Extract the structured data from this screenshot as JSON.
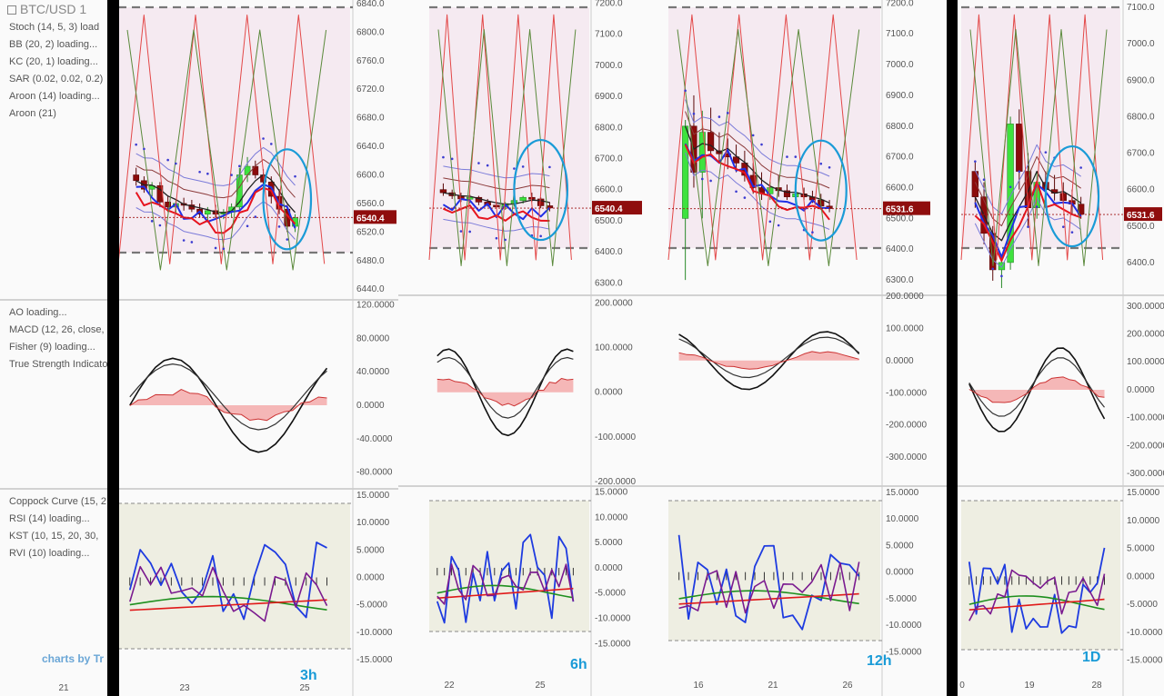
{
  "header": {
    "symbol": "BTC/USD",
    "symbol_suffix": "1",
    "indicators_top": [
      "Stoch (14, 5, 3) load",
      "BB (20, 2) loading...",
      "KC (20, 1) loading...",
      "SAR (0.02, 0.02, 0.2)",
      "Aroon (14) loading...",
      "Aroon (21)"
    ],
    "indicators_middle": [
      "AO loading...",
      "MACD (12, 26, close,",
      "Fisher (9) loading...",
      "True Strength Indicato"
    ],
    "indicators_bottom": [
      "Coppock Curve (15, 2",
      "RSI (14) loading...",
      "KST (10, 15, 20, 30,",
      "RVI (10) loading..."
    ],
    "watermark": "charts by Tr"
  },
  "colors": {
    "up_candle": "#3ee23e",
    "down_candle": "#8b0b0b",
    "macd_pos": "#6fcf6f",
    "macd_neg": "#f08080",
    "stoch_k": "#1f2fe6",
    "stoch_d": "#e6141e",
    "annotation": "#1a9bd7",
    "osc_bg": "#eeeee2",
    "price_bg": "#f5eaf1"
  },
  "chart_data": [
    {
      "type": "line",
      "timeframe": "3h",
      "price_label": "6540.4",
      "price_axis": [
        "6840.0",
        "6800.0",
        "6760.0",
        "6720.0",
        "6680.0",
        "6640.0",
        "6600.0",
        "6560.0",
        "6520.0",
        "6480.0",
        "6440.0"
      ],
      "ylim": [
        6425,
        6845
      ],
      "macd_axis": [
        "120.0000",
        "80.0000",
        "40.0000",
        "0.0000",
        "-40.0000",
        "-80.0000"
      ],
      "macd_ylim": [
        -100,
        125
      ],
      "osc_axis": [
        "15.0000",
        "10.0000",
        "5.0000",
        "0.0000",
        "-5.0000",
        "-10.0000",
        "-15.0000"
      ],
      "osc_ylim": [
        -18,
        16
      ],
      "x_ticks": [
        "21",
        "23",
        "25"
      ],
      "candles": [
        [
          6600,
          6610,
          6585,
          6592
        ],
        [
          6592,
          6598,
          6575,
          6580
        ],
        [
          6580,
          6590,
          6570,
          6585
        ],
        [
          6585,
          6590,
          6555,
          6562
        ],
        [
          6562,
          6570,
          6548,
          6555
        ],
        [
          6555,
          6565,
          6545,
          6560
        ],
        [
          6560,
          6568,
          6550,
          6558
        ],
        [
          6558,
          6565,
          6548,
          6552
        ],
        [
          6552,
          6560,
          6540,
          6545
        ],
        [
          6545,
          6555,
          6535,
          6550
        ],
        [
          6550,
          6558,
          6540,
          6545
        ],
        [
          6545,
          6552,
          6538,
          6548
        ],
        [
          6548,
          6560,
          6540,
          6555
        ],
        [
          6555,
          6610,
          6550,
          6600
        ],
        [
          6600,
          6625,
          6590,
          6612
        ],
        [
          6612,
          6620,
          6595,
          6600
        ],
        [
          6600,
          6608,
          6580,
          6590
        ],
        [
          6590,
          6598,
          6560,
          6570
        ],
        [
          6570,
          6580,
          6545,
          6552
        ],
        [
          6552,
          6558,
          6520,
          6528
        ],
        [
          6528,
          6545,
          6520,
          6540
        ]
      ],
      "annotation_points": [
        "6680.0"
      ]
    },
    {
      "type": "line",
      "timeframe": "6h",
      "price_label": "6540.4",
      "price_axis": [
        "7200.0",
        "7100.0",
        "7000.0",
        "6900.0",
        "6800.0",
        "6700.0",
        "6600.0",
        "6500.0",
        "6400.0",
        "6300.0"
      ],
      "ylim": [
        6260,
        7210
      ],
      "macd_axis": [
        "200.0000",
        "100.0000",
        "0.0000",
        "-100.0000",
        "-200.0000"
      ],
      "macd_ylim": [
        -210,
        215
      ],
      "osc_axis": [
        "15.0000",
        "10.0000",
        "5.0000",
        "0.0000",
        "-5.0000",
        "-10.0000",
        "-15.0000"
      ],
      "osc_ylim": [
        -18,
        16
      ],
      "x_ticks": [
        "22",
        "25"
      ],
      "candles": [
        [
          6600,
          6620,
          6580,
          6590
        ],
        [
          6590,
          6600,
          6570,
          6580
        ],
        [
          6580,
          6590,
          6560,
          6570
        ],
        [
          6570,
          6585,
          6555,
          6575
        ],
        [
          6575,
          6580,
          6550,
          6560
        ],
        [
          6560,
          6570,
          6545,
          6550
        ],
        [
          6550,
          6560,
          6540,
          6545
        ],
        [
          6545,
          6560,
          6535,
          6555
        ],
        [
          6555,
          6570,
          6545,
          6565
        ],
        [
          6565,
          6580,
          6555,
          6575
        ],
        [
          6575,
          6590,
          6560,
          6570
        ],
        [
          6570,
          6575,
          6540,
          6548
        ],
        [
          6548,
          6560,
          6530,
          6541
        ]
      ]
    },
    {
      "type": "line",
      "timeframe": "12h",
      "price_label": "6531.6",
      "price_axis": [
        "7200.0",
        "7100.0",
        "7000.0",
        "6900.0",
        "6800.0",
        "6700.0",
        "6600.0",
        "6500.0",
        "6400.0",
        "6300.0"
      ],
      "ylim": [
        6250,
        7210
      ],
      "macd_axis": [
        "200.0000",
        "100.0000",
        "0.0000",
        "-100.0000",
        "-200.0000",
        "-300.0000"
      ],
      "macd_ylim": [
        -390,
        200
      ],
      "osc_axis": [
        "15.0000",
        "10.0000",
        "5.0000",
        "0.0000",
        "-5.0000",
        "-10.0000",
        "-15.0000"
      ],
      "osc_ylim": [
        -18,
        16
      ],
      "x_ticks": [
        "16",
        "21",
        "26"
      ],
      "candles": [
        [
          6500,
          6820,
          6300,
          6800
        ],
        [
          6800,
          6900,
          6600,
          6650
        ],
        [
          6650,
          6850,
          6500,
          6780
        ],
        [
          6780,
          6860,
          6700,
          6720
        ],
        [
          6720,
          6780,
          6680,
          6710
        ],
        [
          6710,
          6760,
          6660,
          6700
        ],
        [
          6700,
          6740,
          6650,
          6680
        ],
        [
          6680,
          6720,
          6620,
          6640
        ],
        [
          6640,
          6680,
          6580,
          6600
        ],
        [
          6600,
          6650,
          6560,
          6580
        ],
        [
          6580,
          6620,
          6560,
          6600
        ],
        [
          6600,
          6640,
          6570,
          6590
        ],
        [
          6590,
          6610,
          6560,
          6570
        ],
        [
          6570,
          6600,
          6550,
          6580
        ],
        [
          6580,
          6600,
          6560,
          6570
        ],
        [
          6570,
          6590,
          6550,
          6560
        ],
        [
          6560,
          6580,
          6530,
          6540
        ],
        [
          6540,
          6560,
          6520,
          6532
        ]
      ]
    },
    {
      "type": "line",
      "timeframe": "1D",
      "price_label": "6531.6",
      "price_axis": [
        "7100.0",
        "7000.0",
        "6900.0",
        "6800.0",
        "6700.0",
        "6600.0",
        "6500.0",
        "6400.0"
      ],
      "ylim": [
        6310,
        7120
      ],
      "macd_axis": [
        "300.0000",
        "200.0000",
        "100.0000",
        "0.0000",
        "-100.0000",
        "-200.0000",
        "-300.0000"
      ],
      "macd_ylim": [
        -345,
        335
      ],
      "osc_axis": [
        "15.0000",
        "10.0000",
        "5.0000",
        "0.0000",
        "-5.0000",
        "-10.0000",
        "-15.0000"
      ],
      "osc_ylim": [
        -18,
        16
      ],
      "x_ticks": [
        "0",
        "19",
        "28"
      ],
      "candles": [
        [
          6650,
          6680,
          6550,
          6580
        ],
        [
          6580,
          6620,
          6450,
          6480
        ],
        [
          6480,
          6500,
          6350,
          6380
        ],
        [
          6380,
          6420,
          6330,
          6400
        ],
        [
          6400,
          6800,
          6380,
          6780
        ],
        [
          6780,
          6820,
          6600,
          6650
        ],
        [
          6650,
          6700,
          6500,
          6550
        ],
        [
          6550,
          6650,
          6520,
          6620
        ],
        [
          6620,
          6650,
          6580,
          6600
        ],
        [
          6600,
          6640,
          6570,
          6590
        ],
        [
          6590,
          6620,
          6560,
          6570
        ],
        [
          6570,
          6600,
          6530,
          6560
        ],
        [
          6560,
          6580,
          6520,
          6532
        ]
      ]
    }
  ]
}
